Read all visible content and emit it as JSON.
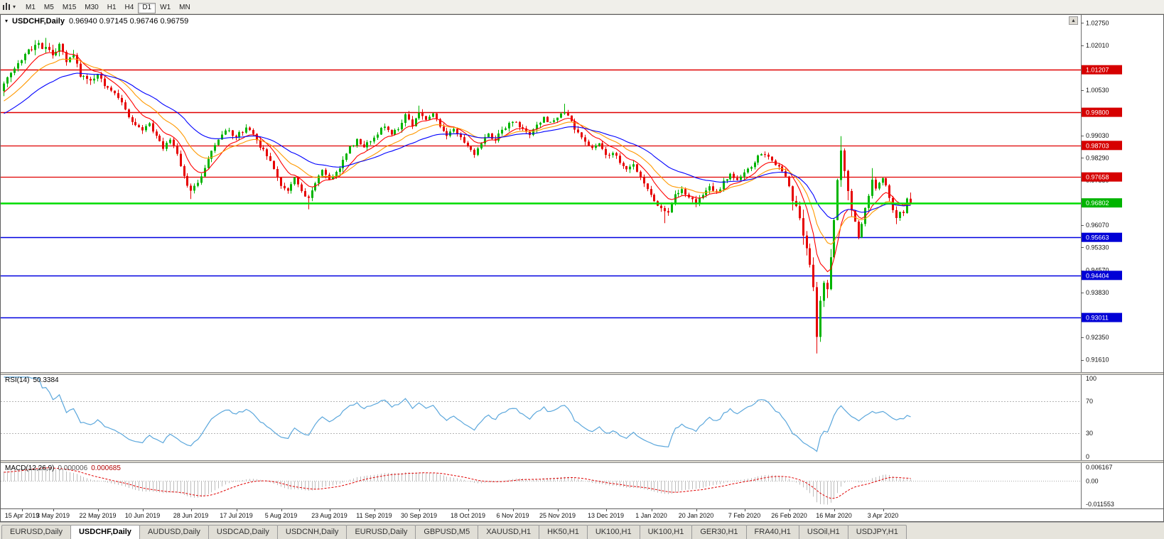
{
  "icons": {
    "caret_down": "▾",
    "scroll_up": "▴"
  },
  "toolbar": {
    "timeframes": [
      {
        "label": "M1",
        "active": false
      },
      {
        "label": "M5",
        "active": false
      },
      {
        "label": "M15",
        "active": false
      },
      {
        "label": "M30",
        "active": false
      },
      {
        "label": "H1",
        "active": false
      },
      {
        "label": "H4",
        "active": false
      },
      {
        "label": "D1",
        "active": true
      },
      {
        "label": "W1",
        "active": false
      },
      {
        "label": "MN",
        "active": false
      }
    ]
  },
  "chart": {
    "title": "USDCHF,Daily",
    "ohlc": "0.96940 0.97145 0.96746 0.96759"
  },
  "rsi": {
    "name": "RSI(14)",
    "value": "50.3384",
    "period": 14,
    "color": "#5BA7DC",
    "levels": [
      100,
      70,
      30,
      0
    ],
    "levels_dashed": [
      70,
      30
    ]
  },
  "macd": {
    "name": "MACD(12,26,9)",
    "value_main": "0.000006",
    "value_signal": "0.000685",
    "fast": 12,
    "slow": 26,
    "signal": 9,
    "histogram_color": "#BDBDBD",
    "signal_color": "#E00000",
    "axis": {
      "top": "0.006167",
      "zero": "0.00",
      "bottom": "-0.011553"
    }
  },
  "chart_data": {
    "type": "candlestick",
    "symbol": "USDCHF",
    "timeframe": "Daily",
    "last_ohlc": {
      "open": 0.9694,
      "high": 0.97145,
      "low": 0.96746,
      "close": 0.96759
    },
    "candle_count": 263,
    "colors": {
      "up": "#00B400",
      "down": "#E60000"
    },
    "price_axis": {
      "max": 1.0302,
      "min": 0.9118,
      "ticks": [
        "1.02750",
        "1.02010",
        "1.00530",
        "0.99030",
        "0.98290",
        "0.97550",
        "0.96070",
        "0.95330",
        "0.94570",
        "0.93830",
        "0.92350",
        "0.91610"
      ],
      "badges": [
        {
          "value": "1.01207",
          "price": 1.01207,
          "color": "#D60000"
        },
        {
          "value": "0.99800",
          "price": 0.998,
          "color": "#D60000"
        },
        {
          "value": "0.98703",
          "price": 0.98703,
          "color": "#D60000"
        },
        {
          "value": "0.97658",
          "price": 0.97658,
          "color": "#D60000"
        },
        {
          "value": "0.96802",
          "price": 0.96802,
          "color": "#00B400"
        },
        {
          "value": "0.95663",
          "price": 0.95663,
          "color": "#0000D6"
        },
        {
          "value": "0.94404",
          "price": 0.94404,
          "color": "#0000D6"
        },
        {
          "value": "0.93011",
          "price": 0.93011,
          "color": "#0000D6"
        }
      ]
    },
    "horizontal_lines": [
      {
        "label": "1.01207",
        "price": 1.01207,
        "color": "#E00000",
        "width": 1.6
      },
      {
        "label": "0.99800",
        "price": 0.998,
        "color": "#E00000",
        "width": 1.6
      },
      {
        "label": "0.98703",
        "price": 0.98703,
        "color": "#E00000",
        "width": 1.2
      },
      {
        "label": "0.97658",
        "price": 0.97658,
        "color": "#E00000",
        "width": 1.2
      },
      {
        "label": "0.95663",
        "price": 0.95663,
        "color": "#0000E0",
        "width": 1.6
      },
      {
        "label": "0.94404",
        "price": 0.94404,
        "color": "#0000E0",
        "width": 1.6
      },
      {
        "label": "0.93011",
        "price": 0.93011,
        "color": "#0000E0",
        "width": 1.6
      }
    ],
    "current_price": {
      "value": 0.96802,
      "color": "#00DC00"
    },
    "moving_averages": [
      {
        "period": 9,
        "color": "#FF0000"
      },
      {
        "period": 18,
        "color": "#FF9900"
      },
      {
        "period": 36,
        "color": "#0000FF"
      }
    ],
    "volatility": {
      "base": 0.0009,
      "zones": [
        [
          0,
          30,
          1.4
        ],
        [
          228,
          246,
          2.6
        ]
      ]
    },
    "close_waypoints": [
      [
        0,
        1.0075
      ],
      [
        3,
        1.0125
      ],
      [
        6,
        1.017
      ],
      [
        9,
        1.0205
      ],
      [
        12,
        1.0195
      ],
      [
        14,
        1.0175
      ],
      [
        16,
        1.0198
      ],
      [
        18,
        1.015
      ],
      [
        20,
        1.0168
      ],
      [
        22,
        1.0105
      ],
      [
        25,
        1.0082
      ],
      [
        27,
        1.0098
      ],
      [
        30,
        1.0058
      ],
      [
        33,
        1.003
      ],
      [
        36,
        0.9962
      ],
      [
        38,
        0.9938
      ],
      [
        40,
        0.9918
      ],
      [
        42,
        0.994
      ],
      [
        44,
        0.99
      ],
      [
        46,
        0.986
      ],
      [
        48,
        0.9892
      ],
      [
        50,
        0.9845
      ],
      [
        52,
        0.9768
      ],
      [
        54,
        0.9718
      ],
      [
        56,
        0.9748
      ],
      [
        58,
        0.9792
      ],
      [
        60,
        0.9852
      ],
      [
        62,
        0.9885
      ],
      [
        64,
        0.9922
      ],
      [
        67,
        0.9898
      ],
      [
        70,
        0.9928
      ],
      [
        72,
        0.9908
      ],
      [
        74,
        0.9868
      ],
      [
        76,
        0.9838
      ],
      [
        78,
        0.9795
      ],
      [
        80,
        0.9742
      ],
      [
        82,
        0.9718
      ],
      [
        84,
        0.9762
      ],
      [
        86,
        0.9722
      ],
      [
        88,
        0.9692
      ],
      [
        90,
        0.9745
      ],
      [
        92,
        0.9788
      ],
      [
        94,
        0.9758
      ],
      [
        96,
        0.9778
      ],
      [
        98,
        0.9822
      ],
      [
        100,
        0.9862
      ],
      [
        102,
        0.9888
      ],
      [
        104,
        0.9868
      ],
      [
        107,
        0.9898
      ],
      [
        110,
        0.9938
      ],
      [
        112,
        0.9908
      ],
      [
        114,
        0.9928
      ],
      [
        116,
        0.9968
      ],
      [
        118,
        0.994
      ],
      [
        120,
        0.9978
      ],
      [
        122,
        0.9955
      ],
      [
        124,
        0.9972
      ],
      [
        126,
        0.9935
      ],
      [
        128,
        0.9898
      ],
      [
        130,
        0.9922
      ],
      [
        132,
        0.9892
      ],
      [
        134,
        0.9862
      ],
      [
        136,
        0.9845
      ],
      [
        138,
        0.9878
      ],
      [
        140,
        0.9908
      ],
      [
        142,
        0.9888
      ],
      [
        144,
        0.9922
      ],
      [
        147,
        0.9948
      ],
      [
        150,
        0.993
      ],
      [
        152,
        0.9908
      ],
      [
        154,
        0.9938
      ],
      [
        156,
        0.9962
      ],
      [
        158,
        0.9942
      ],
      [
        160,
        0.9968
      ],
      [
        162,
        0.9982
      ],
      [
        164,
        0.9945
      ],
      [
        166,
        0.9908
      ],
      [
        168,
        0.9882
      ],
      [
        170,
        0.9858
      ],
      [
        172,
        0.9872
      ],
      [
        174,
        0.9838
      ],
      [
        176,
        0.9848
      ],
      [
        178,
        0.9812
      ],
      [
        180,
        0.9788
      ],
      [
        182,
        0.9802
      ],
      [
        184,
        0.9768
      ],
      [
        186,
        0.9728
      ],
      [
        188,
        0.9688
      ],
      [
        190,
        0.9662
      ],
      [
        192,
        0.9648
      ],
      [
        194,
        0.9705
      ],
      [
        196,
        0.9722
      ],
      [
        198,
        0.9702
      ],
      [
        200,
        0.9682
      ],
      [
        202,
        0.9708
      ],
      [
        204,
        0.9738
      ],
      [
        206,
        0.9712
      ],
      [
        208,
        0.9748
      ],
      [
        210,
        0.9772
      ],
      [
        212,
        0.9758
      ],
      [
        214,
        0.9782
      ],
      [
        216,
        0.9802
      ],
      [
        218,
        0.9832
      ],
      [
        220,
        0.9842
      ],
      [
        222,
        0.9822
      ],
      [
        224,
        0.9798
      ],
      [
        226,
        0.9772
      ],
      [
        227,
        0.9732
      ],
      [
        229,
        0.9655
      ],
      [
        231,
        0.9588
      ],
      [
        233,
        0.9482
      ],
      [
        234,
        0.9395
      ],
      [
        235,
        0.9225
      ],
      [
        236,
        0.9355
      ],
      [
        237,
        0.9425
      ],
      [
        238,
        0.9385
      ],
      [
        239,
        0.9505
      ],
      [
        240,
        0.9625
      ],
      [
        241,
        0.9752
      ],
      [
        242,
        0.9868
      ],
      [
        243,
        0.9802
      ],
      [
        244,
        0.9722
      ],
      [
        245,
        0.9655
      ],
      [
        246,
        0.9602
      ],
      [
        247,
        0.9565
      ],
      [
        248,
        0.9612
      ],
      [
        250,
        0.9702
      ],
      [
        251,
        0.9758
      ],
      [
        252,
        0.9732
      ],
      [
        254,
        0.9768
      ],
      [
        255,
        0.9742
      ],
      [
        256,
        0.9702
      ],
      [
        257,
        0.9662
      ],
      [
        258,
        0.9632
      ],
      [
        259,
        0.9656
      ],
      [
        260,
        0.9642
      ],
      [
        261,
        0.9698
      ],
      [
        262,
        0.96759
      ]
    ],
    "wick_overrides": [
      {
        "i": 12,
        "high": 1.0226
      },
      {
        "i": 54,
        "low": 0.9693
      },
      {
        "i": 88,
        "low": 0.9659
      },
      {
        "i": 120,
        "high": 1.0002
      },
      {
        "i": 162,
        "high": 1.0008
      },
      {
        "i": 191,
        "low": 0.9613
      },
      {
        "i": 220,
        "high": 0.9847
      },
      {
        "i": 235,
        "low": 0.9182
      },
      {
        "i": 242,
        "high": 0.9901
      },
      {
        "i": 251,
        "high": 0.9795
      },
      {
        "i": 258,
        "low": 0.961
      }
    ],
    "date_labels": [
      {
        "i": 0,
        "text": "15 Apr 2019"
      },
      {
        "i": 14,
        "text": "3 May 2019"
      },
      {
        "i": 27,
        "text": "22 May 2019"
      },
      {
        "i": 40,
        "text": "10 Jun 2019"
      },
      {
        "i": 54,
        "text": "28 Jun 2019"
      },
      {
        "i": 67,
        "text": "17 Jul 2019"
      },
      {
        "i": 80,
        "text": "5 Aug 2019"
      },
      {
        "i": 94,
        "text": "23 Aug 2019"
      },
      {
        "i": 107,
        "text": "11 Sep 2019"
      },
      {
        "i": 120,
        "text": "30 Sep 2019"
      },
      {
        "i": 134,
        "text": "18 Oct 2019"
      },
      {
        "i": 147,
        "text": "6 Nov 2019"
      },
      {
        "i": 160,
        "text": "25 Nov 2019"
      },
      {
        "i": 174,
        "text": "13 Dec 2019"
      },
      {
        "i": 187,
        "text": "1 Jan 2020"
      },
      {
        "i": 200,
        "text": "20 Jan 2020"
      },
      {
        "i": 214,
        "text": "7 Feb 2020"
      },
      {
        "i": 227,
        "text": "26 Feb 2020"
      },
      {
        "i": 240,
        "text": "16 Mar 2020"
      },
      {
        "i": 254,
        "text": "3 Apr 2020"
      }
    ]
  },
  "tabs": {
    "items": [
      {
        "label": "EURUSD,Daily",
        "active": false
      },
      {
        "label": "USDCHF,Daily",
        "active": true
      },
      {
        "label": "AUDUSD,Daily",
        "active": false
      },
      {
        "label": "USDCAD,Daily",
        "active": false
      },
      {
        "label": "USDCNH,Daily",
        "active": false
      },
      {
        "label": "EURUSD,Daily",
        "active": false
      },
      {
        "label": "GBPUSD,M5",
        "active": false
      },
      {
        "label": "XAUUSD,H1",
        "active": false
      },
      {
        "label": "HK50,H1",
        "active": false
      },
      {
        "label": "UK100,H1",
        "active": false
      },
      {
        "label": "UK100,H1",
        "active": false
      },
      {
        "label": "GER30,H1",
        "active": false
      },
      {
        "label": "FRA40,H1",
        "active": false
      },
      {
        "label": "USOil,H1",
        "active": false
      },
      {
        "label": "USDJPY,H1",
        "active": false
      }
    ]
  }
}
